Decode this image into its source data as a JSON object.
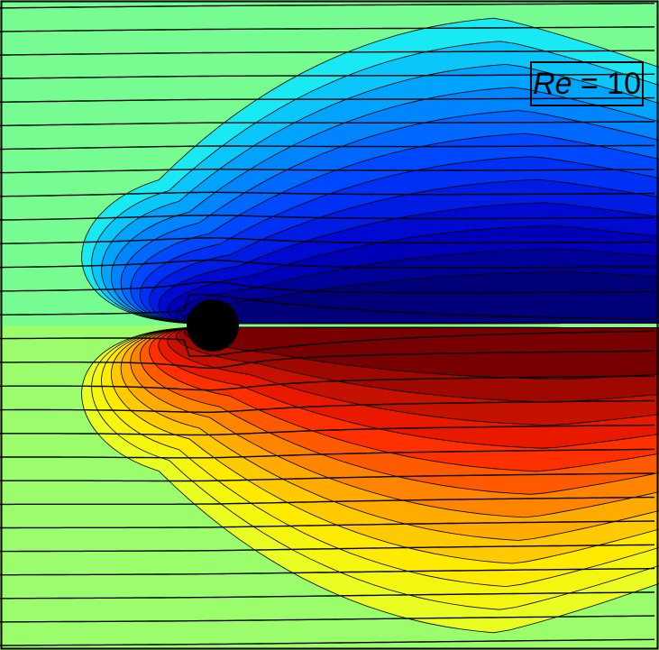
{
  "figure": {
    "label_var": "Re",
    "label_eq": " = 10"
  },
  "colormap": [
    "#00008f",
    "#0000ff",
    "#0080ff",
    "#00ffff",
    "#80ff80",
    "#ffff00",
    "#ff8000",
    "#ff0000",
    "#800000"
  ]
}
